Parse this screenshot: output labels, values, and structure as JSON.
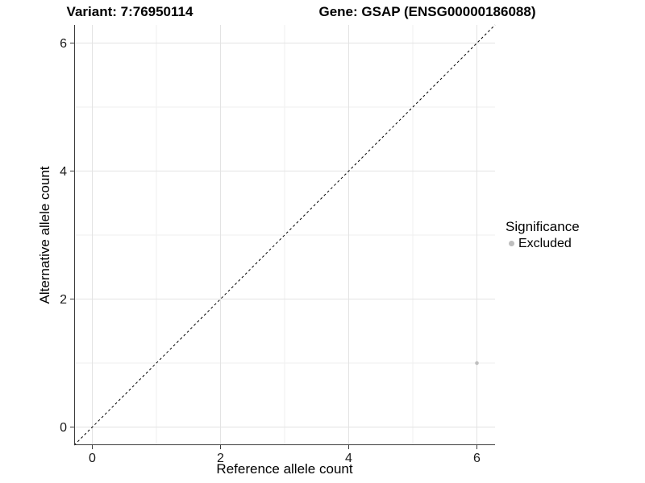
{
  "header": {
    "variant_title": "Variant: 7:76950114",
    "gene_title": "Gene: GSAP (ENSG00000186088)"
  },
  "axes": {
    "x_label": "Reference allele count",
    "y_label": "Alternative allele count"
  },
  "legend": {
    "title": "Significance",
    "items": [
      {
        "label": "Excluded",
        "color": "#bebebe"
      }
    ]
  },
  "chart_data": {
    "type": "scatter",
    "title_left": "Variant: 7:76950114",
    "title_right": "Gene: GSAP (ENSG00000186088)",
    "xlabel": "Reference allele count",
    "ylabel": "Alternative allele count",
    "x_range": [
      -0.283,
      6.283
    ],
    "y_range": [
      -0.283,
      6.283
    ],
    "x_ticks": [
      0,
      2,
      4,
      6
    ],
    "y_ticks": [
      0,
      2,
      4,
      6
    ],
    "x_minor_ticks": [
      1,
      3,
      5
    ],
    "y_minor_ticks": [
      1,
      3,
      5
    ],
    "grid": true,
    "legend_position": "right",
    "series": [
      {
        "name": "Excluded",
        "color": "#bebebe",
        "points": [
          {
            "x": 6,
            "y": 1
          }
        ]
      }
    ],
    "reference_line": {
      "type": "identity",
      "style": "dashed",
      "color": "#000000",
      "dash": "3,3"
    },
    "colors": {
      "grid_major": "#e3e3e3",
      "grid_minor": "#efefef",
      "axis_line": "#3c3c3c",
      "tick_label": "#1a1a1a"
    }
  }
}
